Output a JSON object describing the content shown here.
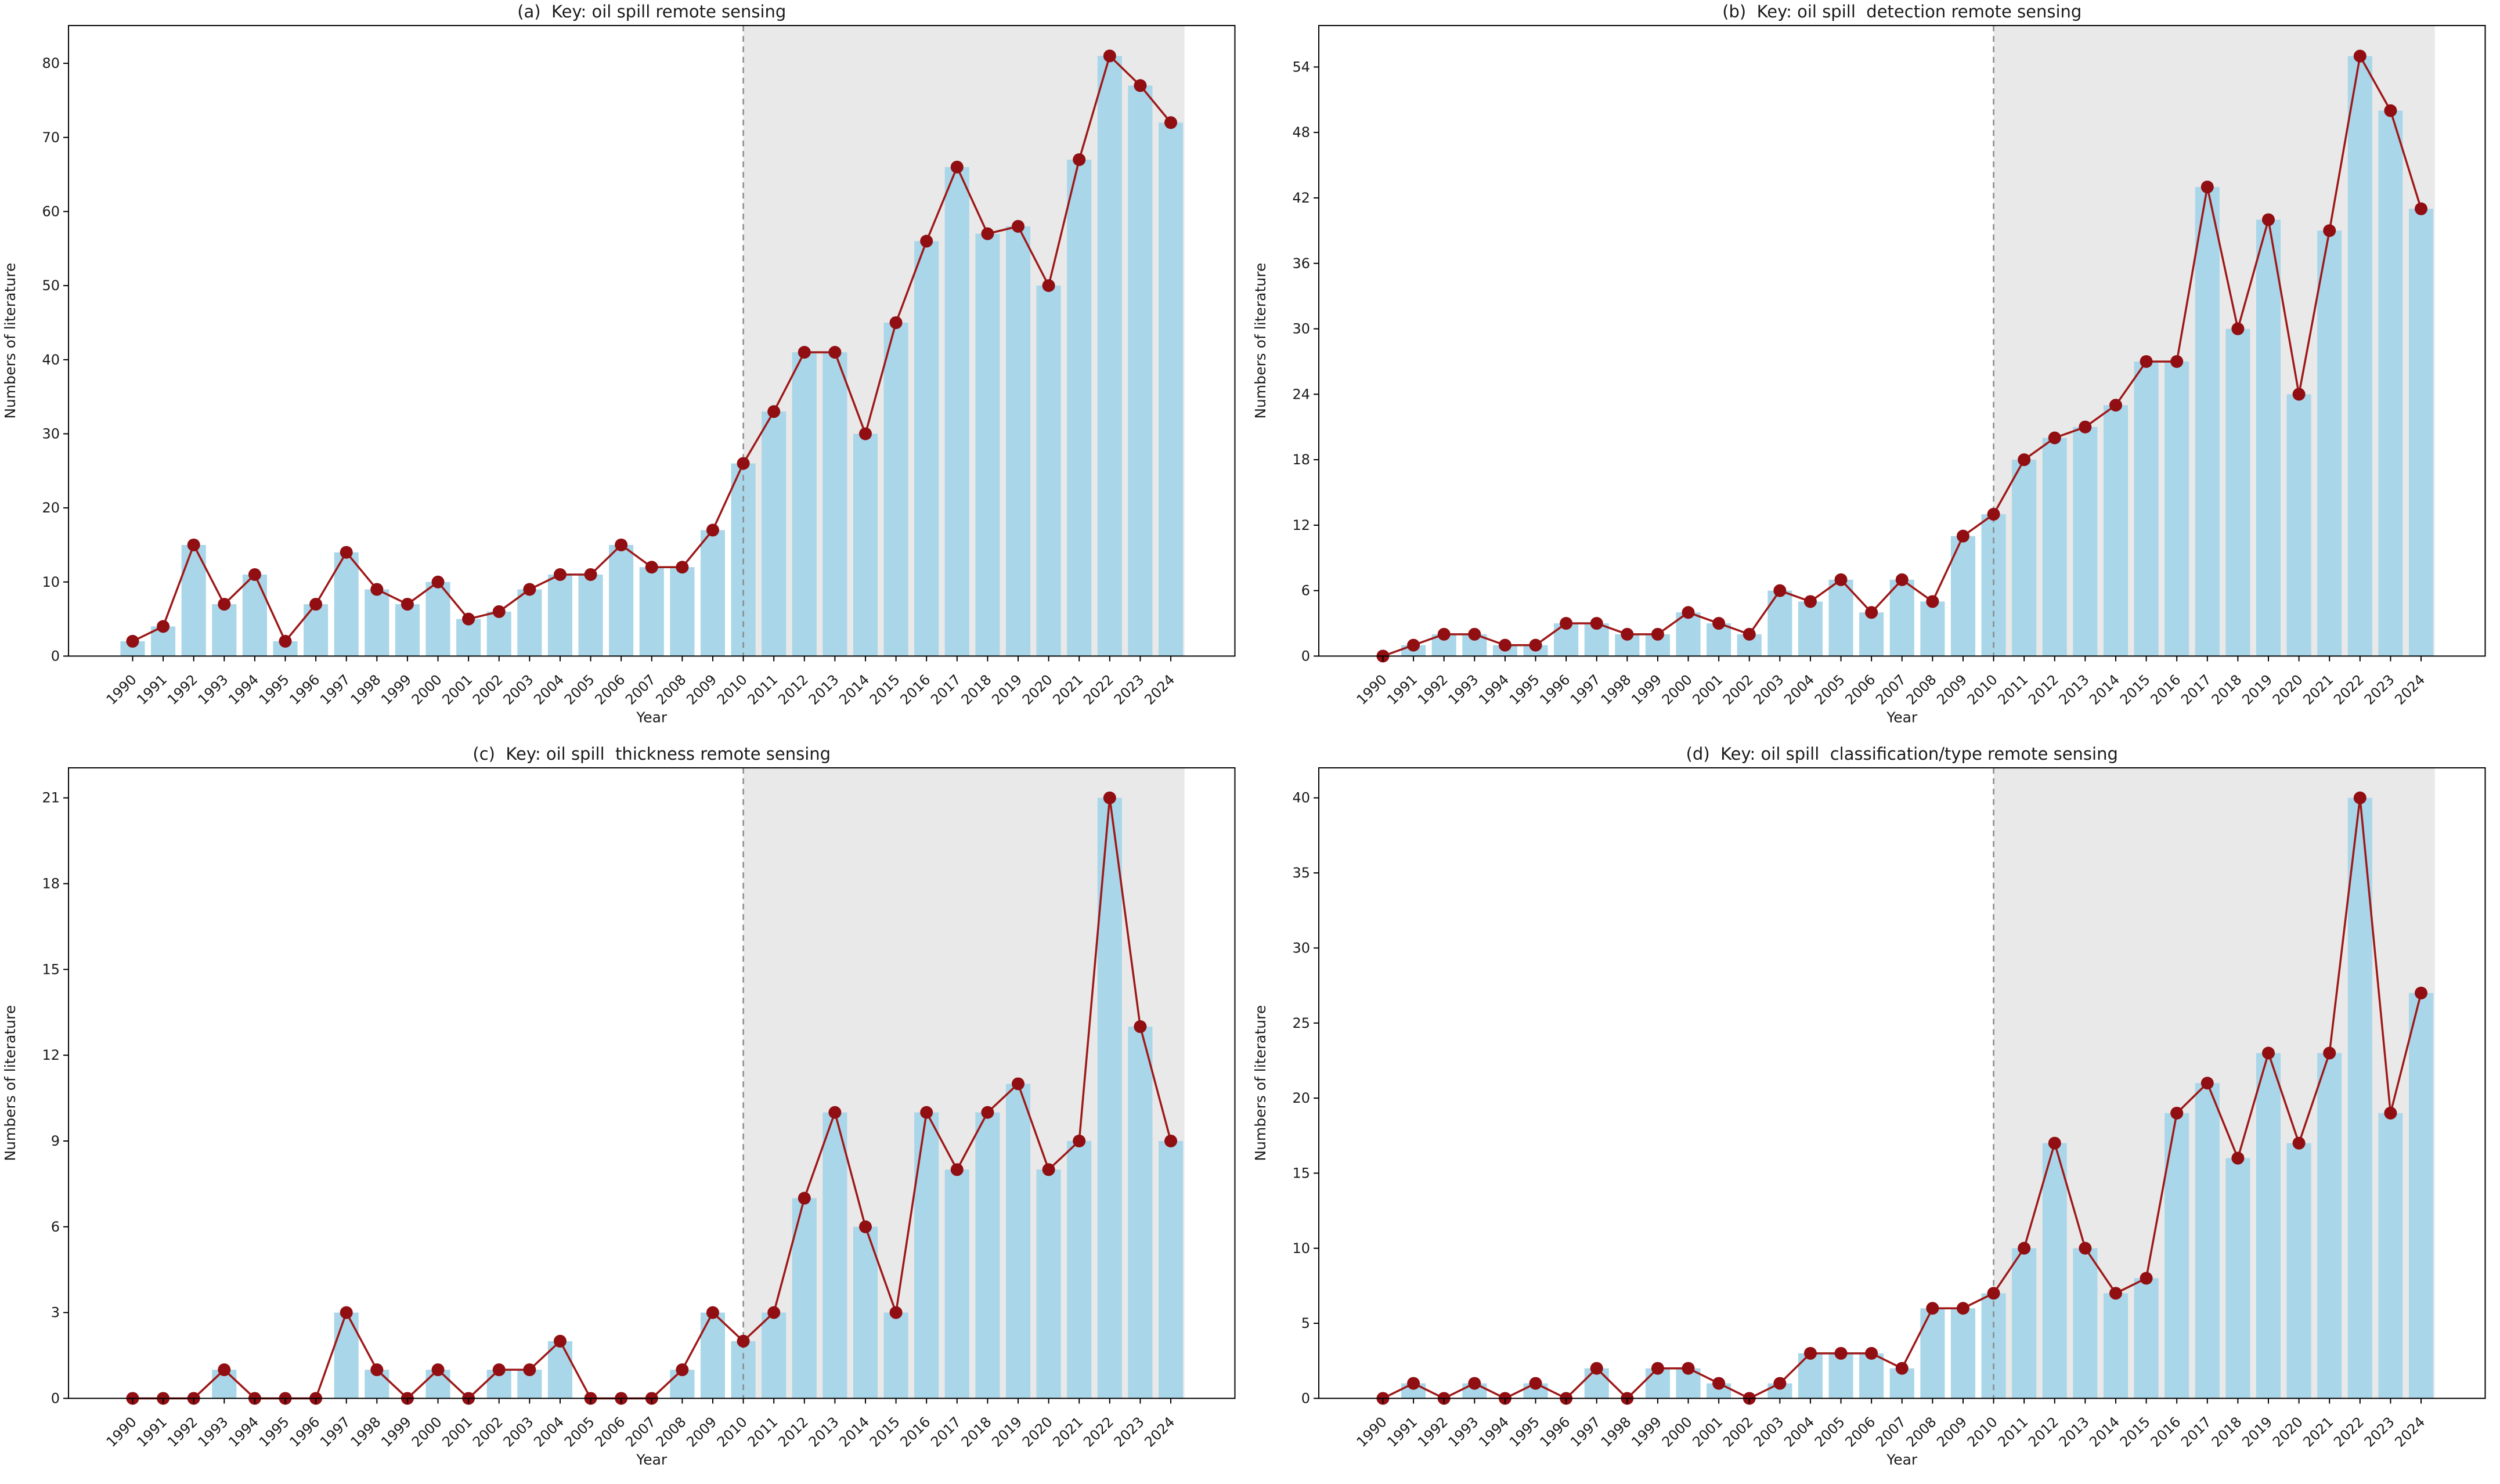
{
  "figure": {
    "style": {
      "background": "#ffffff",
      "bar_color": "#a9d6e9",
      "line_color": "#9e1818",
      "marker_color": "#910e12",
      "span_color": "#e9e9e9",
      "dash_color": "#8a8a8a",
      "axis_color": "#000000",
      "text_color": "#1a1a1a"
    },
    "panels": [
      "a",
      "b",
      "c",
      "d"
    ]
  },
  "chart_data": [
    {
      "id": "a",
      "type": "bar",
      "overlay": "line",
      "title": "(a)  Key: oil spill remote sensing",
      "xlabel": "Year",
      "ylabel": "Numbers of literature",
      "categories": [
        1990,
        1991,
        1992,
        1993,
        1994,
        1995,
        1996,
        1997,
        1998,
        1999,
        2000,
        2001,
        2002,
        2003,
        2004,
        2005,
        2006,
        2007,
        2008,
        2009,
        2010,
        2011,
        2012,
        2013,
        2014,
        2015,
        2016,
        2017,
        2018,
        2019,
        2020,
        2021,
        2022,
        2023,
        2024
      ],
      "values": [
        2,
        4,
        15,
        7,
        11,
        2,
        7,
        14,
        9,
        7,
        10,
        5,
        6,
        9,
        11,
        11,
        15,
        12,
        12,
        17,
        26,
        33,
        41,
        41,
        30,
        45,
        56,
        66,
        57,
        58,
        50,
        67,
        81,
        77,
        72
      ],
      "yticks": [
        0,
        10,
        20,
        30,
        40,
        50,
        60,
        70,
        80
      ],
      "ylim": [
        0,
        85.1
      ],
      "xlim": [
        1987.9,
        2026.1
      ],
      "grid": false,
      "legend": "none",
      "highlight": {
        "span_start": 2010,
        "span_end": 2024.45,
        "dashed_line_at": 2010
      }
    },
    {
      "id": "b",
      "type": "bar",
      "overlay": "line",
      "title": "(b)  Key: oil spill  detection remote sensing",
      "xlabel": "Year",
      "ylabel": "Numbers of literature",
      "categories": [
        1990,
        1991,
        1992,
        1993,
        1994,
        1995,
        1996,
        1997,
        1998,
        1999,
        2000,
        2001,
        2002,
        2003,
        2004,
        2005,
        2006,
        2007,
        2008,
        2009,
        2010,
        2011,
        2012,
        2013,
        2014,
        2015,
        2016,
        2017,
        2018,
        2019,
        2020,
        2021,
        2022,
        2023,
        2024
      ],
      "values": [
        0,
        1,
        2,
        2,
        1,
        1,
        3,
        3,
        2,
        2,
        4,
        3,
        2,
        6,
        5,
        7,
        4,
        7,
        5,
        11,
        13,
        18,
        20,
        21,
        23,
        27,
        27,
        43,
        30,
        40,
        24,
        39,
        55,
        50,
        41
      ],
      "yticks": [
        0,
        6,
        12,
        18,
        24,
        30,
        36,
        42,
        48,
        54
      ],
      "ylim": [
        0,
        57.8
      ],
      "xlim": [
        1987.9,
        2026.1
      ],
      "grid": false,
      "legend": "none",
      "highlight": {
        "span_start": 2010,
        "span_end": 2024.45,
        "dashed_line_at": 2010
      }
    },
    {
      "id": "c",
      "type": "bar",
      "overlay": "line",
      "title": "(c)  Key: oil spill  thickness remote sensing",
      "xlabel": "Year",
      "ylabel": "Numbers of literature",
      "categories": [
        1990,
        1991,
        1992,
        1993,
        1994,
        1995,
        1996,
        1997,
        1998,
        1999,
        2000,
        2001,
        2002,
        2003,
        2004,
        2005,
        2006,
        2007,
        2008,
        2009,
        2010,
        2011,
        2012,
        2013,
        2014,
        2015,
        2016,
        2017,
        2018,
        2019,
        2020,
        2021,
        2022,
        2023,
        2024
      ],
      "values": [
        0,
        0,
        0,
        1,
        0,
        0,
        0,
        3,
        1,
        0,
        1,
        0,
        1,
        1,
        2,
        0,
        0,
        0,
        1,
        3,
        2,
        3,
        7,
        10,
        6,
        3,
        10,
        8,
        10,
        11,
        8,
        9,
        21,
        13,
        9
      ],
      "yticks": [
        0,
        3,
        6,
        9,
        12,
        15,
        18,
        21
      ],
      "ylim": [
        0,
        22.05
      ],
      "xlim": [
        1987.9,
        2026.1
      ],
      "grid": false,
      "legend": "none",
      "highlight": {
        "span_start": 2010,
        "span_end": 2024.45,
        "dashed_line_at": 2010
      }
    },
    {
      "id": "d",
      "type": "bar",
      "overlay": "line",
      "title": "(d)  Key: oil spill  classification/type remote sensing",
      "xlabel": "Year",
      "ylabel": "Numbers of literature",
      "categories": [
        1990,
        1991,
        1992,
        1993,
        1994,
        1995,
        1996,
        1997,
        1998,
        1999,
        2000,
        2001,
        2002,
        2003,
        2004,
        2005,
        2006,
        2007,
        2008,
        2009,
        2010,
        2011,
        2012,
        2013,
        2014,
        2015,
        2016,
        2017,
        2018,
        2019,
        2020,
        2021,
        2022,
        2023,
        2024
      ],
      "values": [
        0,
        1,
        0,
        1,
        0,
        1,
        0,
        2,
        0,
        2,
        2,
        1,
        0,
        1,
        3,
        3,
        3,
        2,
        6,
        6,
        7,
        10,
        17,
        10,
        7,
        8,
        19,
        21,
        16,
        23,
        17,
        23,
        40,
        19,
        27
      ],
      "yticks": [
        0,
        5,
        10,
        15,
        20,
        25,
        30,
        35,
        40
      ],
      "ylim": [
        0,
        42
      ],
      "xlim": [
        1987.9,
        2026.1
      ],
      "grid": false,
      "legend": "none",
      "highlight": {
        "span_start": 2010,
        "span_end": 2024.45,
        "dashed_line_at": 2010
      }
    }
  ]
}
